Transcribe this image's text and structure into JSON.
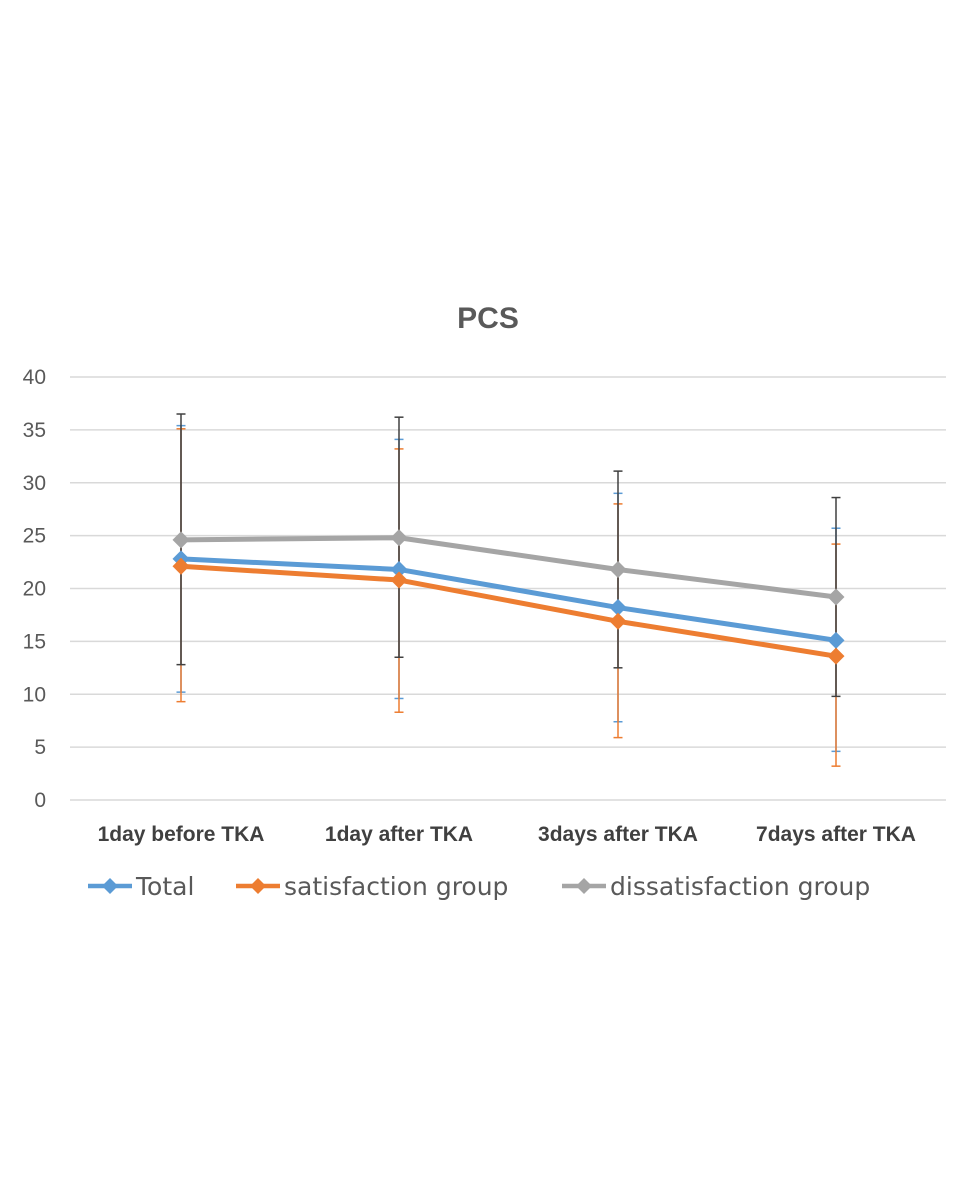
{
  "chart_data": {
    "type": "line",
    "title": "PCS",
    "categories": [
      "1day before TKA",
      "1day after TKA",
      "3days after TKA",
      "7days after TKA"
    ],
    "ylim": [
      0,
      40
    ],
    "yticks": [
      0,
      5,
      10,
      15,
      20,
      25,
      30,
      35,
      40
    ],
    "grid": true,
    "legend_position": "bottom-left",
    "series": [
      {
        "name": "Total",
        "color": "#5B9BD5",
        "values": [
          22.8,
          21.8,
          18.2,
          15.1
        ],
        "error_low": [
          10.2,
          9.6,
          7.4,
          4.6
        ],
        "error_high": [
          35.4,
          34.1,
          29.0,
          25.7
        ]
      },
      {
        "name": "satisfaction group",
        "color": "#ED7D31",
        "values": [
          22.1,
          20.8,
          16.9,
          13.6
        ],
        "error_low": [
          9.3,
          8.3,
          5.9,
          3.2
        ],
        "error_high": [
          35.1,
          33.2,
          28.0,
          24.2
        ]
      },
      {
        "name": "dissatisfaction group",
        "color": "#A5A5A5",
        "values": [
          24.6,
          24.8,
          21.8,
          19.2
        ],
        "error_low": [
          12.8,
          13.5,
          12.5,
          9.8
        ],
        "error_high": [
          36.5,
          36.2,
          31.1,
          28.6
        ],
        "error_color": "#404040"
      }
    ]
  }
}
